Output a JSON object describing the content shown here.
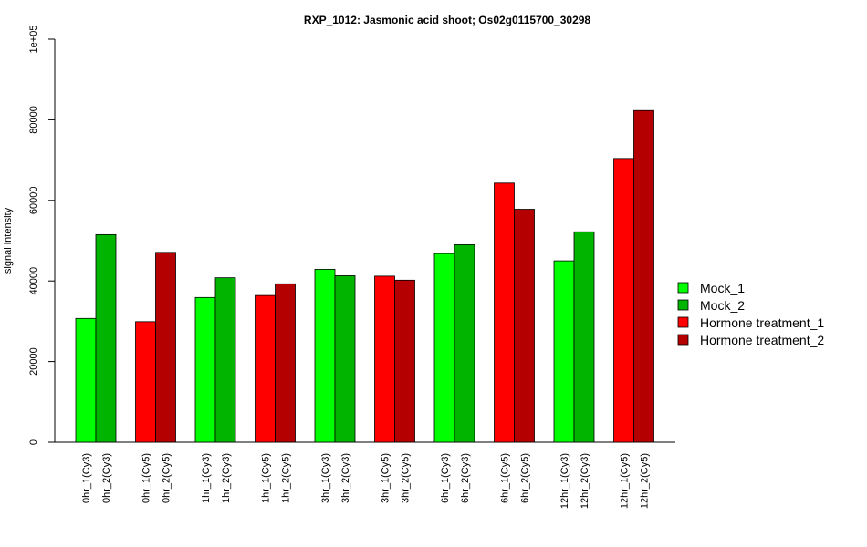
{
  "chart_data": {
    "type": "bar",
    "title": "RXP_1012: Jasmonic acid shoot; Os02g0115700_30298",
    "ylabel": "signal intensity",
    "xlabel": "",
    "ylim": [
      0,
      100000
    ],
    "yticks": [
      0,
      20000,
      40000,
      60000,
      80000,
      100000
    ],
    "ytick_labels": [
      "0",
      "20000",
      "40000",
      "60000",
      "80000",
      "1e+05"
    ],
    "grid": false,
    "legend_position": "right",
    "legend": [
      {
        "name": "Mock_1",
        "color": "#00ff00"
      },
      {
        "name": "Mock_2",
        "color": "#00b400"
      },
      {
        "name": "Hormone treatment_1",
        "color": "#ff0000"
      },
      {
        "name": "Hormone treatment_2",
        "color": "#b40000"
      }
    ],
    "groups": [
      {
        "bars": [
          {
            "label": "0hr_1(Cy3)",
            "value": 30700,
            "color": "#00ff00"
          },
          {
            "label": "0hr_2(Cy3)",
            "value": 51500,
            "color": "#00b400"
          }
        ]
      },
      {
        "bars": [
          {
            "label": "0hr_1(Cy5)",
            "value": 29900,
            "color": "#ff0000"
          },
          {
            "label": "0hr_2(Cy5)",
            "value": 47100,
            "color": "#b40000"
          }
        ]
      },
      {
        "bars": [
          {
            "label": "1hr_1(Cy3)",
            "value": 35900,
            "color": "#00ff00"
          },
          {
            "label": "1hr_2(Cy3)",
            "value": 40800,
            "color": "#00b400"
          }
        ]
      },
      {
        "bars": [
          {
            "label": "1hr_1(Cy5)",
            "value": 36400,
            "color": "#ff0000"
          },
          {
            "label": "1hr_2(Cy5)",
            "value": 39300,
            "color": "#b40000"
          }
        ]
      },
      {
        "bars": [
          {
            "label": "3hr_1(Cy3)",
            "value": 42900,
            "color": "#00ff00"
          },
          {
            "label": "3hr_2(Cy3)",
            "value": 41300,
            "color": "#00b400"
          }
        ]
      },
      {
        "bars": [
          {
            "label": "3hr_1(Cy5)",
            "value": 41200,
            "color": "#ff0000"
          },
          {
            "label": "3hr_2(Cy5)",
            "value": 40200,
            "color": "#b40000"
          }
        ]
      },
      {
        "bars": [
          {
            "label": "6hr_1(Cy3)",
            "value": 46800,
            "color": "#00ff00"
          },
          {
            "label": "6hr_2(Cy3)",
            "value": 49000,
            "color": "#00b400"
          }
        ]
      },
      {
        "bars": [
          {
            "label": "6hr_1(Cy5)",
            "value": 64300,
            "color": "#ff0000"
          },
          {
            "label": "6hr_2(Cy5)",
            "value": 57800,
            "color": "#b40000"
          }
        ]
      },
      {
        "bars": [
          {
            "label": "12hr_1(Cy3)",
            "value": 45000,
            "color": "#00ff00"
          },
          {
            "label": "12hr_2(Cy3)",
            "value": 52200,
            "color": "#00b400"
          }
        ]
      },
      {
        "bars": [
          {
            "label": "12hr_1(Cy5)",
            "value": 70400,
            "color": "#ff0000"
          },
          {
            "label": "12hr_2(Cy5)",
            "value": 82300,
            "color": "#b40000"
          }
        ]
      }
    ]
  }
}
